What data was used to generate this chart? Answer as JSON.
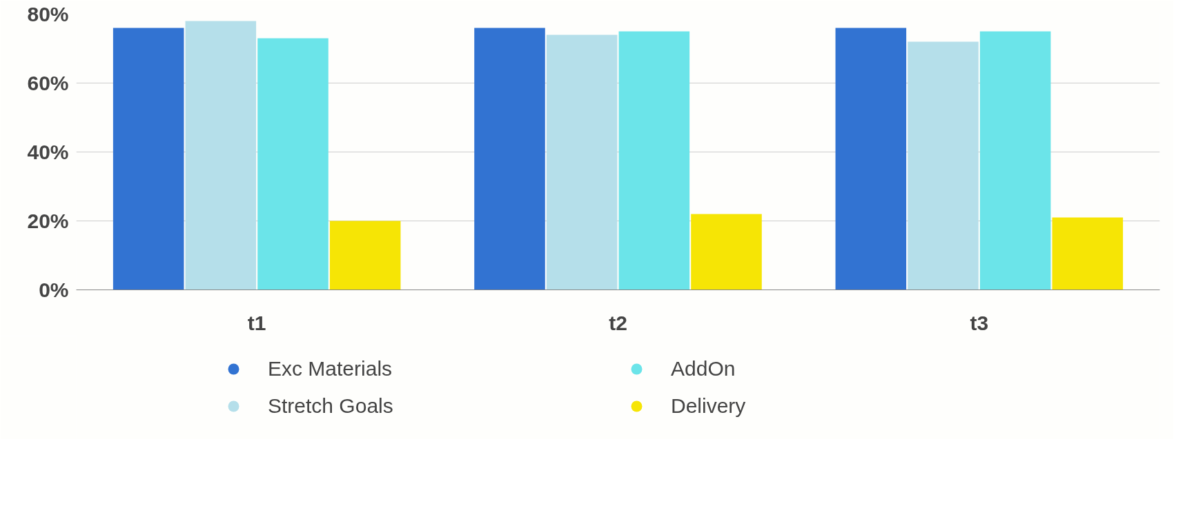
{
  "chart_data": {
    "type": "bar",
    "categories": [
      "t1",
      "t2",
      "t3"
    ],
    "series": [
      {
        "name": "Exc Materials",
        "color": "#3273d2",
        "values": [
          76,
          76,
          76
        ]
      },
      {
        "name": "Stretch Goals",
        "color": "#b5dfea",
        "values": [
          78,
          74,
          72
        ]
      },
      {
        "name": "AddOn",
        "color": "#6be4e9",
        "values": [
          73,
          75,
          75
        ]
      },
      {
        "name": "Delivery",
        "color": "#f6e505",
        "values": [
          20,
          22,
          21
        ]
      }
    ],
    "ylim": [
      0,
      80
    ],
    "yticks": [
      {
        "value": 0,
        "label": "0%"
      },
      {
        "value": 20,
        "label": "20%"
      },
      {
        "value": 40,
        "label": "40%"
      },
      {
        "value": 60,
        "label": "60%"
      },
      {
        "value": 80,
        "label": "80%"
      }
    ],
    "grid": "y",
    "legend": "bottom"
  }
}
